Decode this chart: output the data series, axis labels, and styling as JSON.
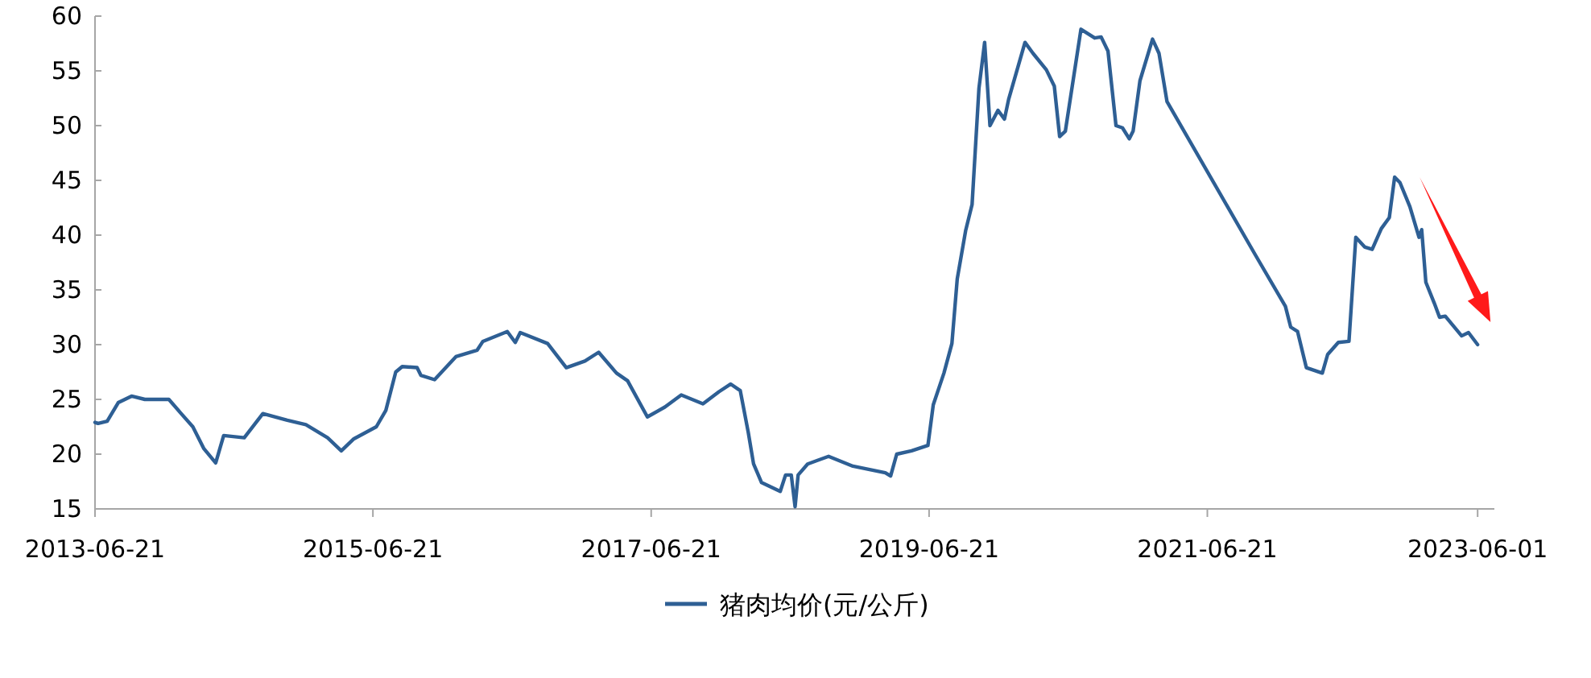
{
  "chart_data": {
    "type": "line",
    "xlim": [
      "2013-06-21",
      "2023-07-15"
    ],
    "xticks": [
      "2013-06-21",
      "2015-06-21",
      "2017-06-21",
      "2019-06-21",
      "2021-06-21",
      "2023-06-01"
    ],
    "ylim": [
      15,
      60
    ],
    "yticks": [
      15,
      20,
      25,
      30,
      35,
      40,
      45,
      50,
      55,
      60
    ],
    "grid": false,
    "legend": "bottom",
    "marker": "none",
    "line_style": "solid",
    "series": [
      {
        "name": "猪肉均价(元/公斤)",
        "color": "#2e5f94",
        "x": [
          "2013-06-21",
          "2013-06-29",
          "2013-07-23",
          "2013-08-21",
          "2013-09-25",
          "2013-10-30",
          "2014-01-01",
          "2014-01-31",
          "2014-03-05",
          "2014-04-03",
          "2014-05-04",
          "2014-05-25",
          "2014-07-18",
          "2014-09-05",
          "2014-11-08",
          "2014-12-27",
          "2015-02-22",
          "2015-03-30",
          "2015-05-02",
          "2015-06-30",
          "2015-07-25",
          "2015-08-20",
          "2015-09-06",
          "2015-10-15",
          "2015-10-25",
          "2015-11-30",
          "2016-01-25",
          "2016-03-21",
          "2016-04-05",
          "2016-06-08",
          "2016-06-29",
          "2016-07-12",
          "2016-09-22",
          "2016-11-10",
          "2016-12-29",
          "2017-02-03",
          "2017-03-22",
          "2017-04-20",
          "2017-06-11",
          "2017-07-27",
          "2017-09-08",
          "2017-11-04",
          "2017-12-16",
          "2018-01-16",
          "2018-02-10",
          "2018-03-03",
          "2018-03-17",
          "2018-04-07",
          "2018-05-26",
          "2018-06-09",
          "2018-06-24",
          "2018-07-04",
          "2018-07-12",
          "2018-08-06",
          "2018-09-30",
          "2018-12-03",
          "2019-02-26",
          "2019-03-12",
          "2019-03-28",
          "2019-05-06",
          "2019-06-18",
          "2019-07-02",
          "2019-07-30",
          "2019-08-20",
          "2019-09-03",
          "2019-09-25",
          "2019-10-12",
          "2019-10-30",
          "2019-11-14",
          "2019-11-28",
          "2019-12-19",
          "2020-01-05",
          "2020-01-16",
          "2020-02-28",
          "2020-03-20",
          "2020-04-24",
          "2020-05-15",
          "2020-05-29",
          "2020-06-13",
          "2020-07-24",
          "2020-08-29",
          "2020-09-15",
          "2020-10-03",
          "2020-10-24",
          "2020-11-10",
          "2020-11-28",
          "2020-12-08",
          "2020-12-26",
          "2021-01-28",
          "2021-02-14",
          "2021-03-07",
          "2021-10-25",
          "2022-01-12",
          "2022-01-26",
          "2022-02-13",
          "2022-03-08",
          "2022-04-19",
          "2022-05-03",
          "2022-05-31",
          "2022-06-28",
          "2022-07-16",
          "2022-08-09",
          "2022-08-28",
          "2022-09-21",
          "2022-10-12",
          "2022-10-26",
          "2022-11-09",
          "2022-12-05",
          "2022-12-29",
          "2023-01-05",
          "2023-01-16",
          "2023-02-07",
          "2023-02-21",
          "2023-03-08",
          "2023-04-20",
          "2023-05-08",
          "2023-06-01"
        ],
        "values": [
          22.9,
          22.8,
          23.0,
          24.7,
          25.3,
          25.0,
          25.0,
          23.8,
          22.5,
          20.5,
          19.2,
          21.7,
          21.5,
          23.7,
          23.1,
          22.7,
          21.5,
          20.3,
          21.4,
          22.5,
          24.0,
          27.5,
          28.0,
          27.9,
          27.2,
          26.8,
          28.9,
          29.5,
          30.3,
          31.2,
          30.2,
          31.1,
          30.1,
          27.9,
          28.5,
          29.3,
          27.4,
          26.7,
          23.4,
          24.3,
          25.4,
          24.6,
          25.7,
          26.4,
          25.8,
          22.0,
          19.1,
          17.4,
          16.6,
          18.1,
          18.1,
          15.2,
          18.1,
          19.1,
          19.8,
          18.9,
          18.3,
          18.0,
          20.0,
          20.3,
          20.8,
          24.5,
          27.4,
          30.1,
          36.0,
          40.4,
          42.8,
          53.4,
          57.6,
          50.0,
          51.4,
          50.6,
          52.4,
          57.6,
          56.6,
          55.1,
          53.6,
          49.0,
          49.5,
          58.8,
          58.0,
          58.1,
          56.8,
          50.0,
          49.8,
          48.8,
          49.5,
          54.1,
          57.9,
          56.6,
          52.2,
          38.2,
          33.5,
          31.6,
          31.2,
          27.9,
          27.4,
          29.1,
          30.2,
          30.3,
          39.8,
          38.9,
          38.7,
          40.6,
          41.6,
          45.3,
          44.8,
          42.6,
          39.8,
          40.5,
          35.7,
          33.8,
          32.5,
          32.6,
          30.8,
          31.1,
          30.0
        ]
      }
    ]
  }
}
